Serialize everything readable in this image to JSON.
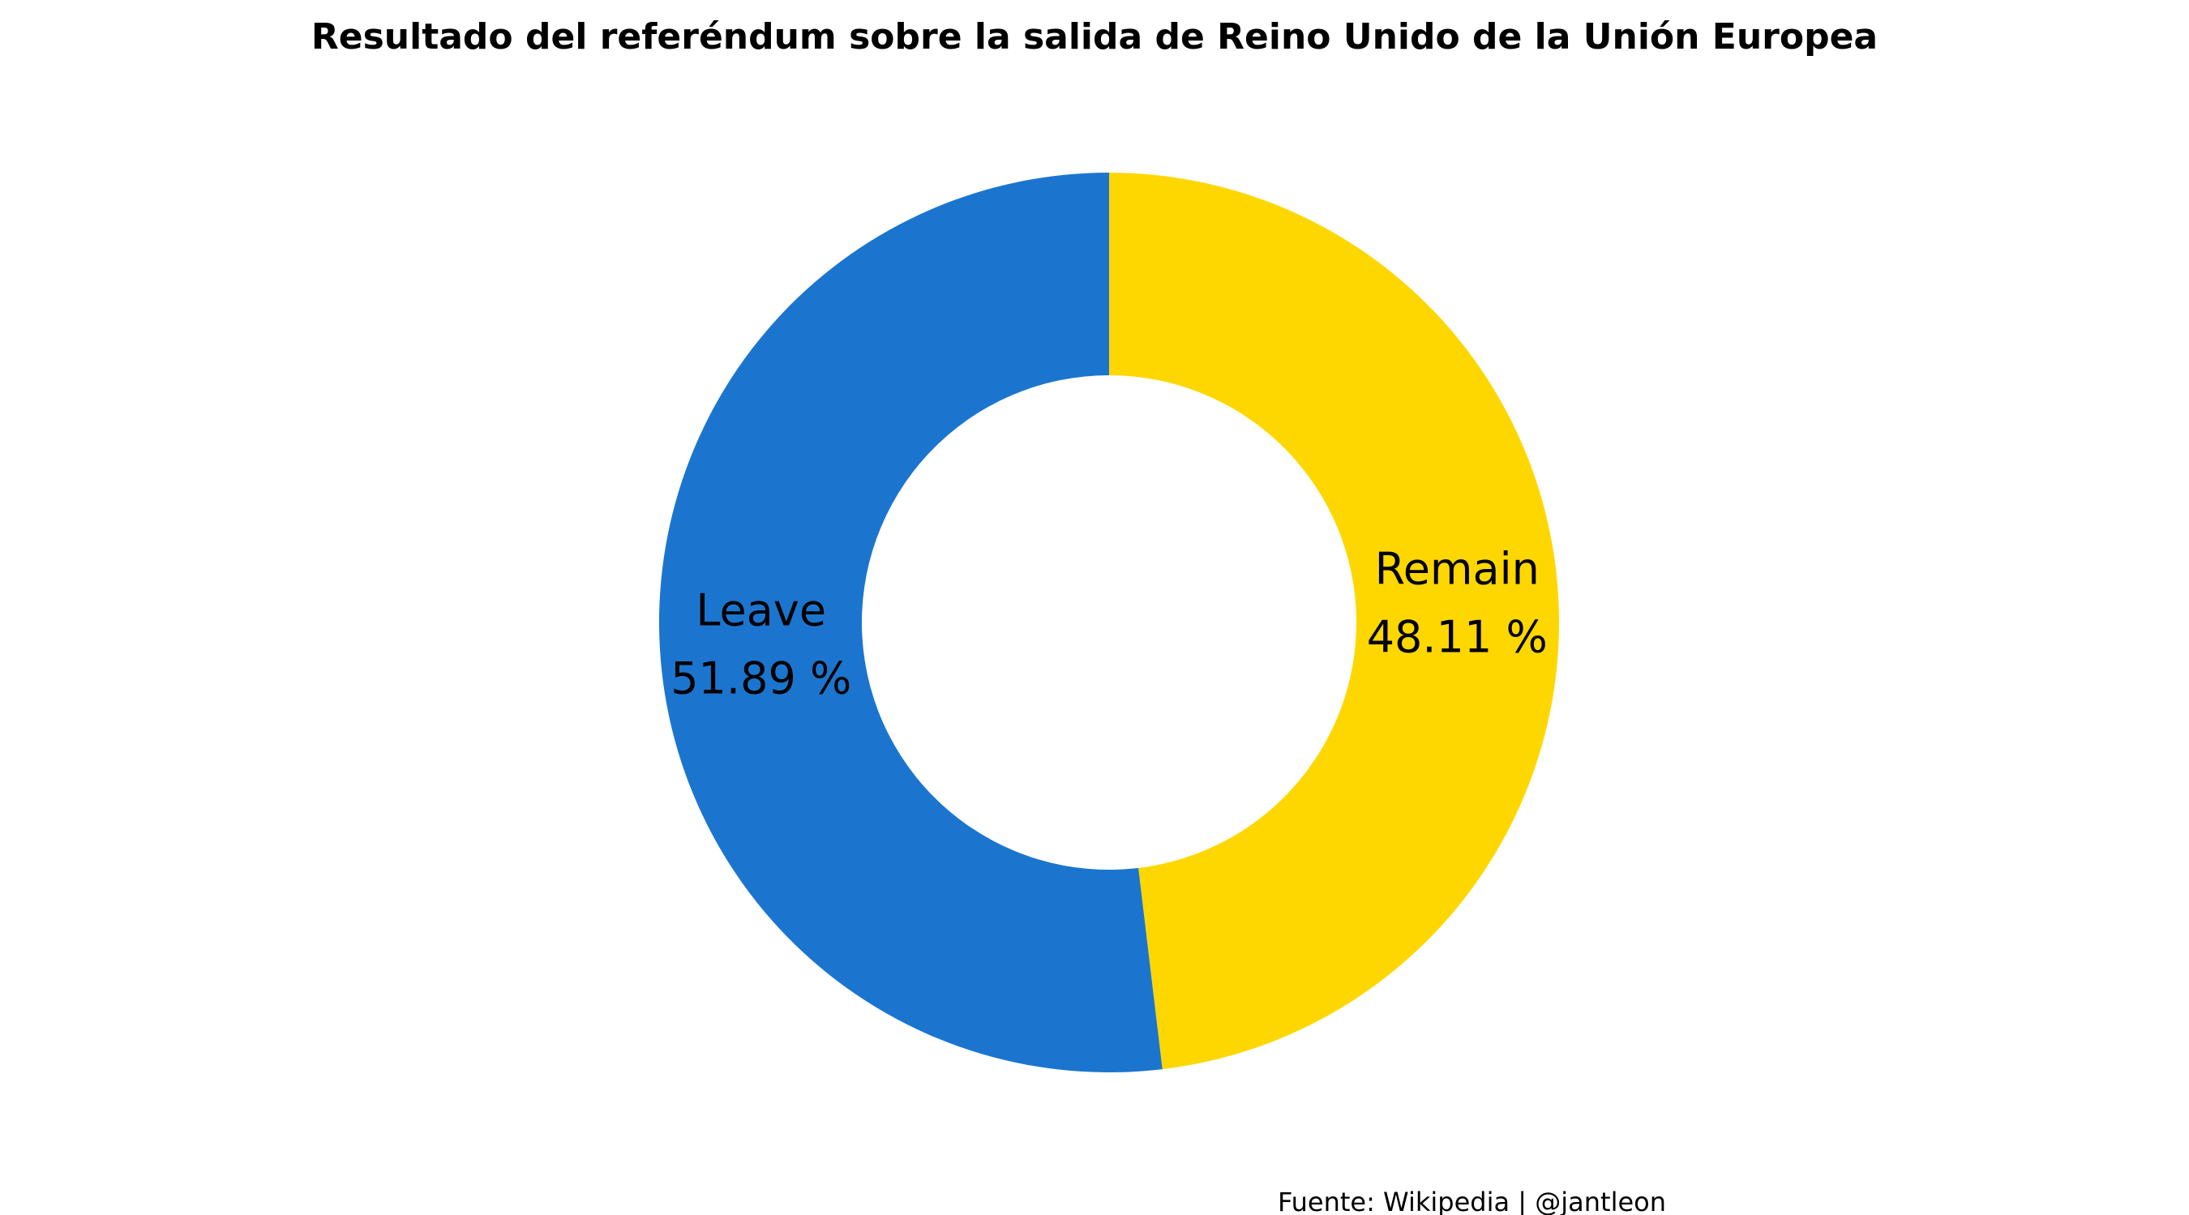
{
  "chart_data": {
    "type": "pie",
    "title": "Resultado del referéndum sobre la salida de Reino Unido de la Unión Europea",
    "caption": "Fuente: Wikipedia | @jantleon",
    "slices": [
      {
        "label": "Remain",
        "value": 48.11,
        "value_text": "48.11 %",
        "color": "#FFD700"
      },
      {
        "label": "Leave",
        "value": 51.89,
        "value_text": "51.89 %",
        "color": "#1B75CE"
      }
    ],
    "donut": true,
    "legend": "none"
  }
}
